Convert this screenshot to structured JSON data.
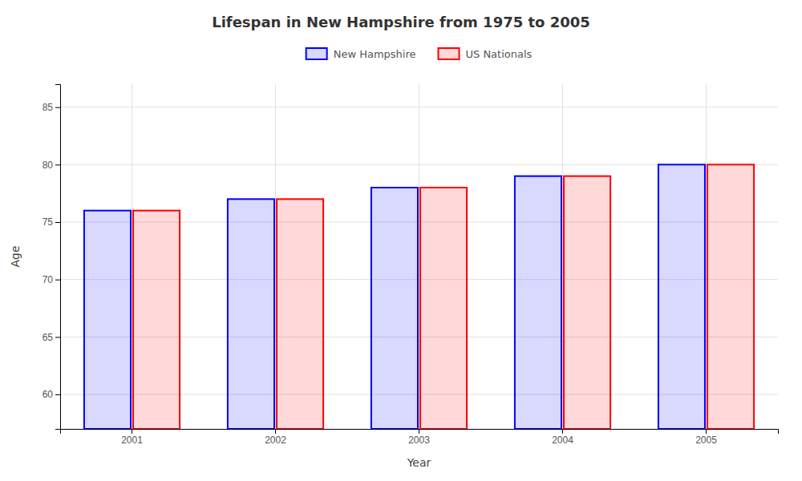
{
  "chart_data": {
    "type": "bar",
    "title": "Lifespan in New Hampshire from 1975 to 2005",
    "x_label": "Year",
    "y_label": "Age",
    "categories": [
      "2001",
      "2002",
      "2003",
      "2004",
      "2005"
    ],
    "series": [
      {
        "name": "New Hampshire",
        "color": "#0000ff",
        "values": [
          76,
          77,
          78,
          79,
          80
        ]
      },
      {
        "name": "US Nationals",
        "color": "#ff0000",
        "values": [
          76,
          77,
          78,
          79,
          80
        ]
      }
    ],
    "ylim": [
      57,
      87
    ],
    "yticks": [
      60,
      65,
      70,
      75,
      80,
      85
    ],
    "grid": true,
    "legend": "top"
  }
}
